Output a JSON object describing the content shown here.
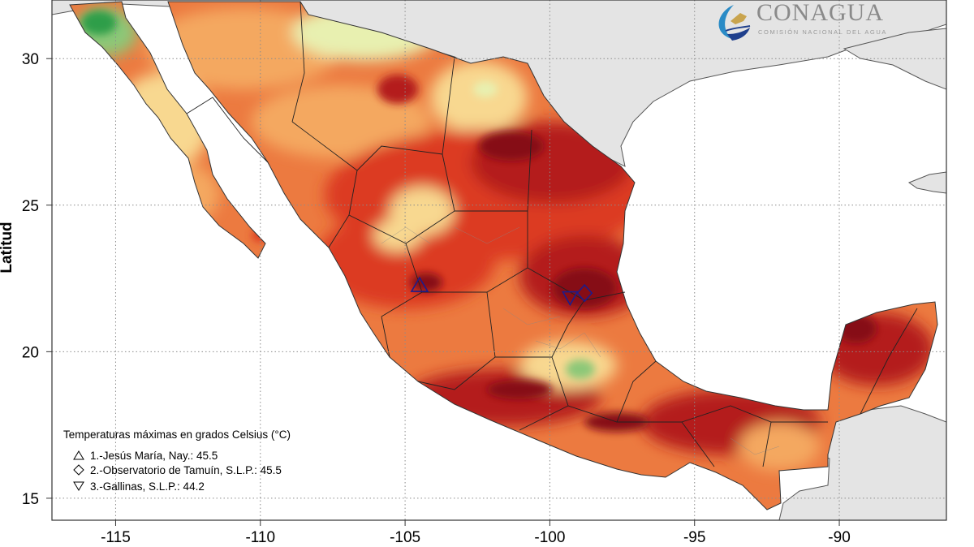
{
  "axes": {
    "y_label": "Latitud",
    "x_ticks": [
      "-115",
      "-110",
      "-105",
      "-100",
      "-95",
      "-90"
    ],
    "y_ticks": [
      "30",
      "25",
      "20",
      "15"
    ],
    "x_range": [
      -117.2,
      -86.3
    ],
    "y_range": [
      14.25,
      32.0
    ]
  },
  "logo": {
    "name": "CONAGUA",
    "subtitle": "COMISIÓN NACIONAL DEL AGUA"
  },
  "legend": {
    "title": "Temperaturas máximas en grados Celsius (°C)",
    "items": [
      {
        "symbol": "△",
        "text": "1.-Jesús María, Nay.: 45.5",
        "lon": -104.5,
        "lat": 22.25
      },
      {
        "symbol": "◇",
        "text": "2.-Observatorio de Tamuín, S.L.P.: 45.5",
        "lon": -98.8,
        "lat": 22.0
      },
      {
        "symbol": "▽",
        "text": "3.-Gallinas, S.L.P.: 44.2",
        "lon": -99.3,
        "lat": 21.85
      }
    ]
  },
  "colors": {
    "ocean": "#ffffff",
    "land_outside": "#e4e4e4",
    "grid": "#8c8c8c",
    "marker": "#1c1c8c",
    "temperature_scale": [
      "#2e9e4a",
      "#8cc878",
      "#e8f0b0",
      "#f8d890",
      "#f4a860",
      "#ec7a40",
      "#dc3a24",
      "#b41c1c",
      "#861018"
    ]
  }
}
